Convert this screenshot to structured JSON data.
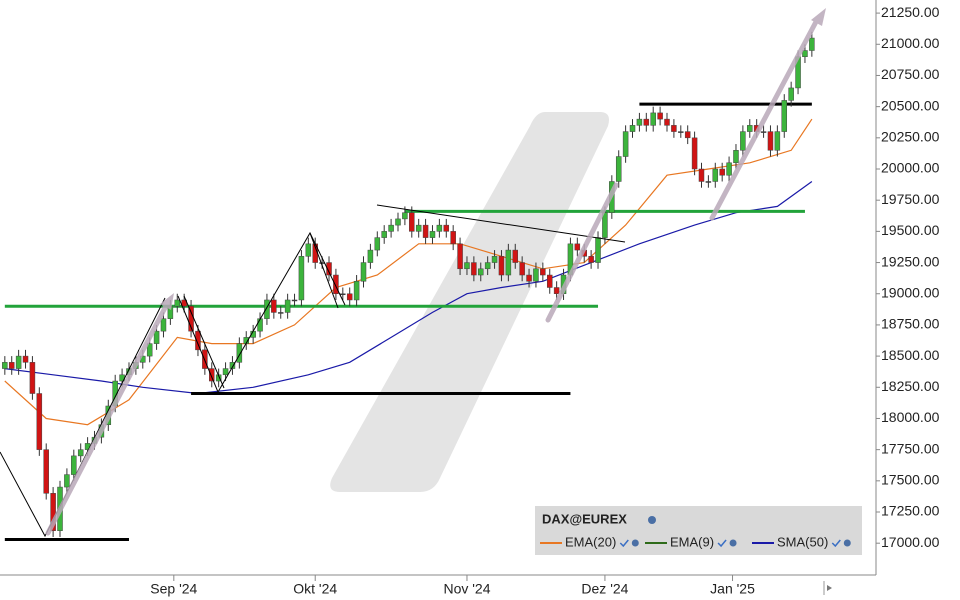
{
  "chart_data": {
    "type": "candlestick",
    "title": "DAX@EUREX",
    "up_color": "#3cb43c",
    "down_color": "#d01414",
    "candles": {
      "open": [
        18400,
        18450,
        18400,
        18500,
        18450,
        18200,
        17750,
        17400,
        17100,
        17450,
        17550,
        17700,
        17750,
        17800,
        17850,
        17950,
        18100,
        18300,
        18350,
        18400,
        18450,
        18500,
        18600,
        18700,
        18800,
        18900,
        18950,
        18900,
        18700,
        18550,
        18400,
        18300,
        18350,
        18400,
        18450,
        18600,
        18650,
        18700,
        18800,
        18950,
        18850,
        18850,
        18950,
        18950,
        19300,
        19400,
        19250,
        19250,
        19150,
        19000,
        19000,
        18950,
        19100,
        19250,
        19350,
        19450,
        19500,
        19550,
        19600,
        19650,
        19500,
        19550,
        19450,
        19500,
        19550,
        19500,
        19400,
        19200,
        19250,
        19150,
        19200,
        19250,
        19300,
        19150,
        19350,
        19250,
        19150,
        19100,
        19200,
        19150,
        19050,
        19000,
        19150,
        19400,
        19350,
        19300,
        19250,
        19450,
        19650,
        19900,
        20100,
        20300,
        20350,
        20400,
        20350,
        20450,
        20400,
        20350,
        20300,
        20300,
        20250,
        20000,
        19900,
        19900,
        20000,
        19950,
        20050,
        20150,
        20300,
        20350,
        20300,
        20300,
        20150,
        20300,
        20550,
        20650,
        20900,
        20950
      ],
      "high": [
        18500,
        18500,
        18550,
        18550,
        18500,
        18250,
        17800,
        17450,
        17500,
        17600,
        17750,
        17800,
        17850,
        17900,
        18000,
        18150,
        18350,
        18400,
        18450,
        18500,
        18550,
        18650,
        18750,
        18850,
        18950,
        19000,
        19000,
        18950,
        18750,
        18600,
        18450,
        18400,
        18450,
        18500,
        18650,
        18700,
        18750,
        18850,
        19000,
        19000,
        18900,
        19000,
        19000,
        19350,
        19450,
        19450,
        19300,
        19300,
        19200,
        19050,
        19050,
        19150,
        19300,
        19400,
        19500,
        19550,
        19600,
        19650,
        19700,
        19700,
        19600,
        19600,
        19550,
        19600,
        19600,
        19550,
        19450,
        19300,
        19300,
        19250,
        19300,
        19350,
        19350,
        19400,
        19400,
        19300,
        19200,
        19250,
        19250,
        19200,
        19100,
        19200,
        19450,
        19450,
        19400,
        19350,
        19500,
        19700,
        19950,
        20150,
        20350,
        20400,
        20450,
        20450,
        20500,
        20500,
        20450,
        20400,
        20350,
        20350,
        20300,
        20050,
        19950,
        20050,
        20050,
        20100,
        20200,
        20350,
        20400,
        20400,
        20350,
        20350,
        20350,
        20600,
        20700,
        20950,
        21000,
        21100
      ],
      "low": [
        18350,
        18350,
        18350,
        18400,
        18150,
        17700,
        17350,
        17050,
        17050,
        17400,
        17500,
        17650,
        17700,
        17750,
        17800,
        17900,
        18050,
        18250,
        18300,
        18350,
        18400,
        18450,
        18550,
        18650,
        18750,
        18850,
        18850,
        18650,
        18500,
        18350,
        18250,
        18250,
        18300,
        18350,
        18400,
        18550,
        18600,
        18650,
        18750,
        18800,
        18800,
        18800,
        18900,
        18900,
        19250,
        19200,
        19200,
        19100,
        18950,
        18950,
        18900,
        18900,
        19050,
        19200,
        19300,
        19400,
        19450,
        19500,
        19550,
        19450,
        19450,
        19400,
        19400,
        19450,
        19450,
        19350,
        19150,
        19150,
        19100,
        19100,
        19150,
        19200,
        19100,
        19100,
        19200,
        19100,
        19050,
        19050,
        19100,
        19000,
        18950,
        18950,
        19100,
        19300,
        19250,
        19200,
        19200,
        19400,
        19600,
        19850,
        20050,
        20250,
        20300,
        20300,
        20300,
        20350,
        20300,
        20250,
        20250,
        20200,
        19950,
        19850,
        19850,
        19850,
        19900,
        19900,
        20000,
        20100,
        20250,
        20250,
        20250,
        20100,
        20100,
        20250,
        20500,
        20600,
        20850,
        20900
      ],
      "close": [
        18450,
        18400,
        18500,
        18450,
        18200,
        17750,
        17400,
        17100,
        17450,
        17550,
        17700,
        17750,
        17800,
        17850,
        17950,
        18100,
        18300,
        18350,
        18400,
        18450,
        18500,
        18600,
        18700,
        18800,
        18900,
        18950,
        18900,
        18700,
        18550,
        18400,
        18300,
        18350,
        18400,
        18450,
        18600,
        18650,
        18700,
        18800,
        18950,
        18850,
        18850,
        18950,
        18950,
        19300,
        19400,
        19250,
        19250,
        19150,
        19000,
        19000,
        18950,
        19100,
        19250,
        19350,
        19450,
        19500,
        19550,
        19600,
        19650,
        19500,
        19550,
        19450,
        19500,
        19550,
        19500,
        19400,
        19200,
        19250,
        19150,
        19200,
        19250,
        19300,
        19150,
        19350,
        19250,
        19150,
        19100,
        19200,
        19150,
        19050,
        19000,
        19150,
        19400,
        19350,
        19300,
        19250,
        19450,
        19650,
        19900,
        20100,
        20300,
        20350,
        20400,
        20350,
        20450,
        20400,
        20350,
        20300,
        20300,
        20250,
        20000,
        19900,
        19900,
        20000,
        19950,
        20050,
        20150,
        20300,
        20350,
        20300,
        20300,
        20150,
        20300,
        20550,
        20650,
        20900,
        20950,
        21050
      ]
    },
    "series": [
      {
        "name": "EMA(20)",
        "color": "#e87722",
        "x": [
          0,
          6,
          12,
          18,
          25,
          30,
          36,
          42,
          48,
          54,
          60,
          66,
          72,
          78,
          84,
          90,
          96,
          102,
          108,
          114,
          117
        ],
        "values": [
          18300,
          18000,
          17950,
          18150,
          18650,
          18600,
          18600,
          18750,
          19050,
          19150,
          19400,
          19400,
          19300,
          19200,
          19250,
          19550,
          19950,
          20000,
          20050,
          20150,
          20400
        ]
      },
      {
        "name": "EMA(9)",
        "color": "#2e6b1a"
      },
      {
        "name": "SMA(50)",
        "color": "#1a1aa8",
        "x": [
          0,
          7,
          14,
          20,
          28,
          36,
          44,
          50,
          56,
          62,
          67,
          72,
          78,
          85,
          92,
          100,
          106,
          112,
          117
        ],
        "values": [
          18400,
          18350,
          18300,
          18250,
          18200,
          18250,
          18350,
          18450,
          18650,
          18850,
          19000,
          19050,
          19100,
          19250,
          19400,
          19550,
          19650,
          19700,
          19900
        ]
      }
    ],
    "levels": [
      {
        "value": 18900,
        "from": 0,
        "to": 86,
        "color": "#22a33a"
      },
      {
        "value": 19660,
        "from": 58,
        "to": 116,
        "color": "#22a33a"
      },
      {
        "value": 20520,
        "from": 92,
        "to": 117,
        "color": "#000000"
      },
      {
        "value": 18200,
        "from": 27,
        "to": 82,
        "color": "#000000"
      },
      {
        "value": 17030,
        "from": 0,
        "to": 18,
        "color": "#000000"
      }
    ],
    "xlim": [
      -0.7,
      126.3
    ],
    "ylim": [
      16745,
      21355
    ],
    "xticks": [
      {
        "value": 24.5,
        "label": "Sep '24"
      },
      {
        "value": 45,
        "label": "Okt '24"
      },
      {
        "value": 67,
        "label": "Nov '24"
      },
      {
        "value": 87,
        "label": "Dez '24"
      },
      {
        "value": 105.5,
        "label": "Jan '25"
      }
    ],
    "yticks": [
      {
        "value": 17000,
        "label": "17000.00"
      },
      {
        "value": 17250,
        "label": "17250.00"
      },
      {
        "value": 17500,
        "label": "17500.00"
      },
      {
        "value": 17750,
        "label": "17750.00"
      },
      {
        "value": 18000,
        "label": "18000.00"
      },
      {
        "value": 18250,
        "label": "18250.00"
      },
      {
        "value": 18500,
        "label": "18500.00"
      },
      {
        "value": 18750,
        "label": "18750.00"
      },
      {
        "value": 19000,
        "label": "19000.00"
      },
      {
        "value": 19250,
        "label": "19250.00"
      },
      {
        "value": 19500,
        "label": "19500.00"
      },
      {
        "value": 19750,
        "label": "19750.00"
      },
      {
        "value": 20000,
        "label": "20000.00"
      },
      {
        "value": 20250,
        "label": "20250.00"
      },
      {
        "value": 20500,
        "label": "20500.00"
      },
      {
        "value": 20750,
        "label": "20750.00"
      },
      {
        "value": 21000,
        "label": "21000.00"
      },
      {
        "value": 21250,
        "label": "21250.00"
      }
    ]
  }
}
